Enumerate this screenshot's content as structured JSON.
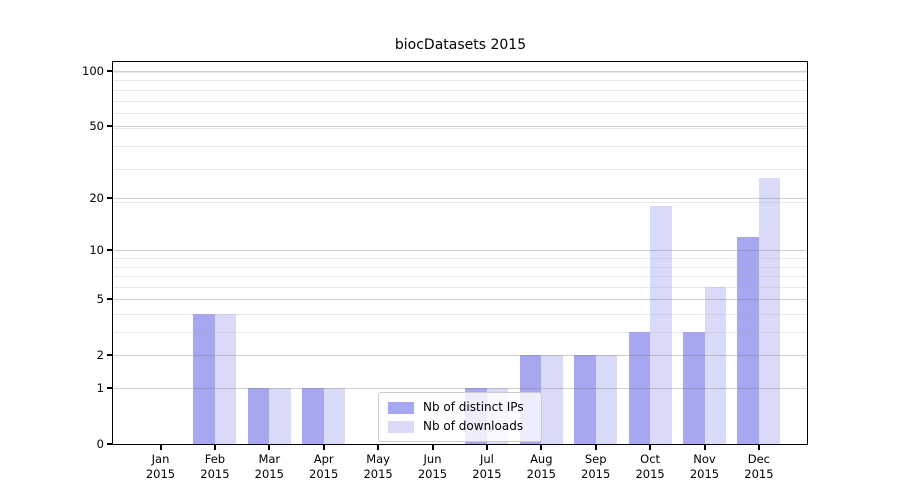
{
  "title": "biocDatasets 2015",
  "chart_data": {
    "type": "bar",
    "title": "biocDatasets 2015",
    "categories": [
      "Jan",
      "Feb",
      "Mar",
      "Apr",
      "May",
      "Jun",
      "Jul",
      "Aug",
      "Sep",
      "Oct",
      "Nov",
      "Dec"
    ],
    "x_sublabel": "2015",
    "series": [
      {
        "name": "Nb of distinct IPs",
        "color": "#a6a6f1",
        "values": [
          0,
          4,
          1,
          1,
          0,
          0,
          1,
          2,
          2,
          3,
          3,
          12
        ]
      },
      {
        "name": "Nb of downloads",
        "color": "#d9d9f8",
        "values": [
          0,
          4,
          1,
          1,
          0,
          0,
          1,
          2,
          2,
          18,
          6,
          26
        ]
      }
    ],
    "y_axis": {
      "scale": "log1p",
      "ticks": [
        0,
        1,
        2,
        5,
        10,
        20,
        50,
        100
      ],
      "lim_top": 112
    },
    "xlabel": "",
    "ylabel": "",
    "grid": true,
    "legend_position": "lower center"
  }
}
